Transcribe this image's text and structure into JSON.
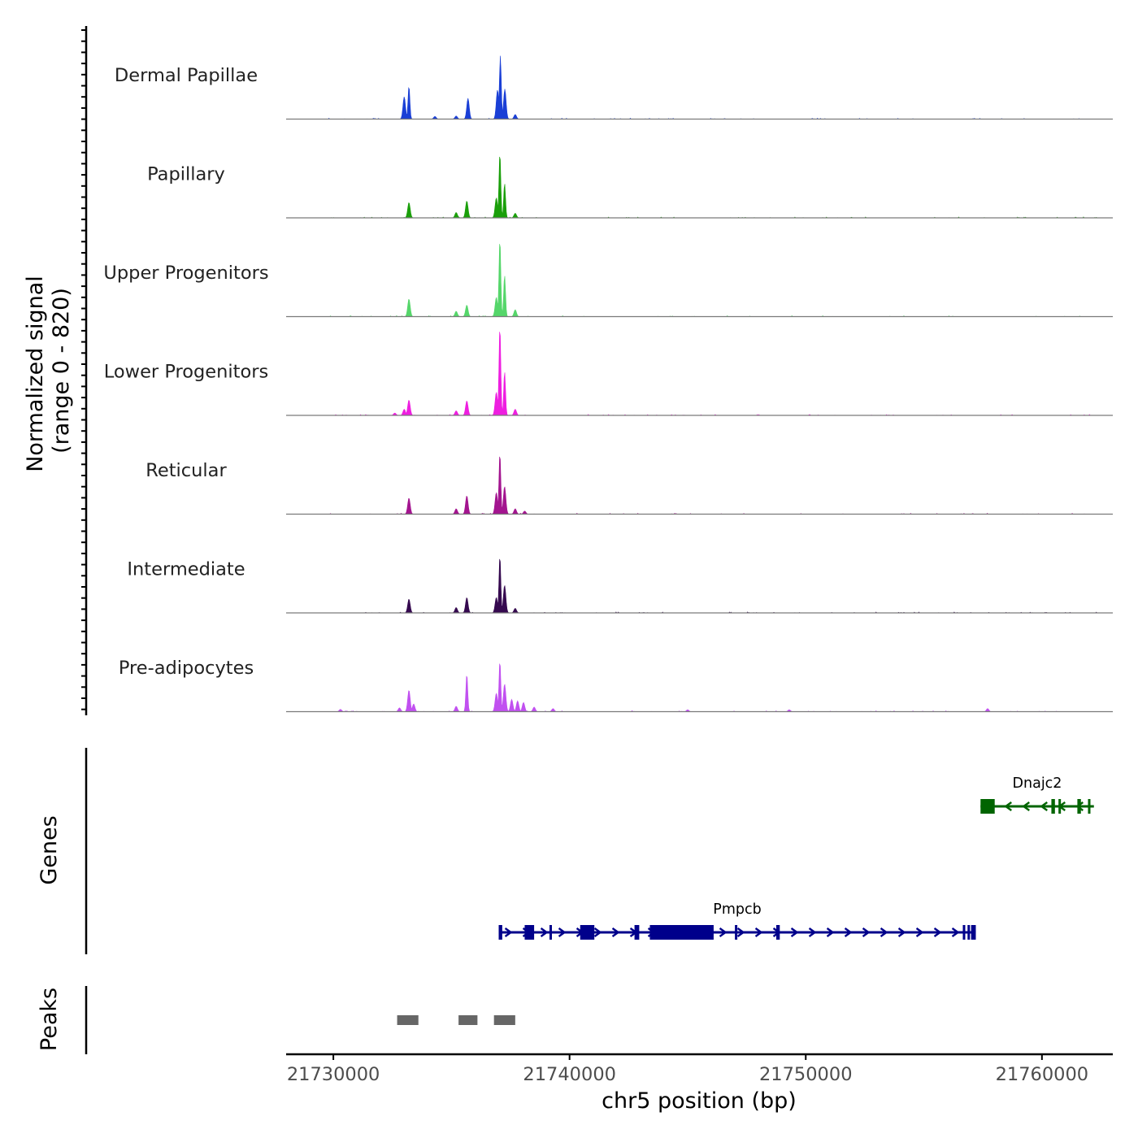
{
  "chart_data": {
    "type": "area",
    "subtype": "genome-coverage-track",
    "chromosome": "chr5",
    "xlabel": "chr5 position (bp)",
    "xlim": [
      21728000,
      21763000
    ],
    "x_ticks": [
      21730000,
      21740000,
      21750000,
      21760000
    ],
    "x_tick_labels": [
      "21730000",
      "21740000",
      "21750000",
      "21760000"
    ],
    "ylabel_line1": "Normalized signal",
    "ylabel_line2": "(range 0 - 820)",
    "ylim": [
      0,
      820
    ],
    "coverage_tracks": [
      {
        "name": "Dermal Papillae",
        "color": "#1a3fd6",
        "peaks": [
          {
            "pos": 21733000,
            "height": 290
          },
          {
            "pos": 21733200,
            "height": 430
          },
          {
            "pos": 21735700,
            "height": 270
          },
          {
            "pos": 21736950,
            "height": 380
          },
          {
            "pos": 21737070,
            "height": 820
          },
          {
            "pos": 21737260,
            "height": 390
          },
          {
            "pos": 21737700,
            "height": 60
          },
          {
            "pos": 21734300,
            "height": 35
          },
          {
            "pos": 21735200,
            "height": 40
          }
        ]
      },
      {
        "name": "Papillary",
        "color": "#1a9f0a",
        "peaks": [
          {
            "pos": 21733200,
            "height": 200
          },
          {
            "pos": 21735200,
            "height": 70
          },
          {
            "pos": 21735650,
            "height": 220
          },
          {
            "pos": 21736900,
            "height": 260
          },
          {
            "pos": 21737050,
            "height": 840
          },
          {
            "pos": 21737250,
            "height": 450
          },
          {
            "pos": 21737700,
            "height": 60
          }
        ]
      },
      {
        "name": "Upper Progenitors",
        "color": "#55d66a",
        "peaks": [
          {
            "pos": 21733200,
            "height": 230
          },
          {
            "pos": 21735200,
            "height": 70
          },
          {
            "pos": 21735650,
            "height": 150
          },
          {
            "pos": 21736900,
            "height": 250
          },
          {
            "pos": 21737050,
            "height": 1000
          },
          {
            "pos": 21737250,
            "height": 540
          },
          {
            "pos": 21737700,
            "height": 90
          }
        ]
      },
      {
        "name": "Lower Progenitors",
        "color": "#ee1ee0",
        "peaks": [
          {
            "pos": 21733000,
            "height": 80
          },
          {
            "pos": 21733200,
            "height": 200
          },
          {
            "pos": 21735200,
            "height": 60
          },
          {
            "pos": 21735650,
            "height": 190
          },
          {
            "pos": 21736900,
            "height": 300
          },
          {
            "pos": 21737050,
            "height": 1150
          },
          {
            "pos": 21737250,
            "height": 570
          },
          {
            "pos": 21737700,
            "height": 80
          },
          {
            "pos": 21732600,
            "height": 30
          }
        ]
      },
      {
        "name": "Reticular",
        "color": "#a3148f",
        "peaks": [
          {
            "pos": 21733200,
            "height": 210
          },
          {
            "pos": 21735200,
            "height": 70
          },
          {
            "pos": 21735650,
            "height": 240
          },
          {
            "pos": 21736900,
            "height": 280
          },
          {
            "pos": 21737050,
            "height": 790
          },
          {
            "pos": 21737250,
            "height": 360
          },
          {
            "pos": 21737700,
            "height": 70
          },
          {
            "pos": 21738100,
            "height": 40
          }
        ]
      },
      {
        "name": "Intermediate",
        "color": "#35094f",
        "peaks": [
          {
            "pos": 21733200,
            "height": 180
          },
          {
            "pos": 21735200,
            "height": 70
          },
          {
            "pos": 21735650,
            "height": 200
          },
          {
            "pos": 21736900,
            "height": 200
          },
          {
            "pos": 21737050,
            "height": 740
          },
          {
            "pos": 21737250,
            "height": 360
          },
          {
            "pos": 21737700,
            "height": 60
          }
        ]
      },
      {
        "name": "Pre-adipocytes",
        "color": "#c150f0",
        "peaks": [
          {
            "pos": 21730300,
            "height": 30
          },
          {
            "pos": 21732800,
            "height": 50
          },
          {
            "pos": 21733200,
            "height": 280
          },
          {
            "pos": 21733400,
            "height": 100
          },
          {
            "pos": 21735200,
            "height": 70
          },
          {
            "pos": 21735650,
            "height": 490
          },
          {
            "pos": 21736900,
            "height": 240
          },
          {
            "pos": 21737050,
            "height": 660
          },
          {
            "pos": 21737250,
            "height": 360
          },
          {
            "pos": 21737550,
            "height": 160
          },
          {
            "pos": 21737800,
            "height": 140
          },
          {
            "pos": 21738050,
            "height": 120
          },
          {
            "pos": 21738500,
            "height": 60
          },
          {
            "pos": 21739300,
            "height": 40
          },
          {
            "pos": 21745000,
            "height": 25
          },
          {
            "pos": 21749300,
            "height": 25
          },
          {
            "pos": 21757700,
            "height": 40
          }
        ]
      }
    ],
    "genes_track": {
      "label": "Genes",
      "genes": [
        {
          "name": "Dnajc2",
          "color": "#006400",
          "strand": "-",
          "start": 21757400,
          "end": 21762200,
          "exons": [
            [
              21757400,
              21758000
            ],
            [
              21760400,
              21760550
            ],
            [
              21760700,
              21760800
            ],
            [
              21761500,
              21761650
            ],
            [
              21761950,
              21762050
            ]
          ]
        },
        {
          "name": "Pmpcb",
          "color": "#00008b",
          "strand": "+",
          "start": 21737000,
          "end": 21757200,
          "exons": [
            [
              21737000,
              21737150
            ],
            [
              21738100,
              21738500
            ],
            [
              21739150,
              21739250
            ],
            [
              21740450,
              21741050
            ],
            [
              21742750,
              21742950
            ],
            [
              21743400,
              21746100
            ],
            [
              21747000,
              21747100
            ],
            [
              21748750,
              21748900
            ],
            [
              21756650,
              21756750
            ],
            [
              21756850,
              21756950
            ],
            [
              21757000,
              21757200
            ]
          ]
        }
      ]
    },
    "peaks_track": {
      "label": "Peaks",
      "color": "#666666",
      "regions": [
        [
          21732700,
          21733600
        ],
        [
          21735300,
          21736100
        ],
        [
          21736800,
          21737700
        ]
      ]
    }
  }
}
